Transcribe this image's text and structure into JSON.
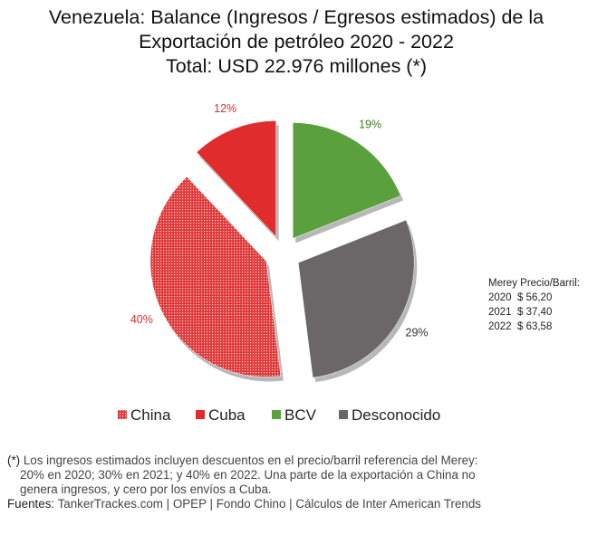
{
  "chart_data": {
    "type": "pie",
    "title": [
      "Venezuela: Balance (Ingresos / Egresos estimados) de la",
      "Exportación de petróleo 2020 - 2022",
      "Total: USD 22.976 millones (*)"
    ],
    "slices": [
      {
        "name": "BCV",
        "value": 19,
        "label": "19%",
        "color": "#5aa03c",
        "label_color": "#3f7d26",
        "pattern": "solid"
      },
      {
        "name": "Desconocido",
        "value": 29,
        "label": "29%",
        "color": "#6b6667",
        "label_color": "#333333",
        "pattern": "solid"
      },
      {
        "name": "China",
        "value": 40,
        "label": "40%",
        "color": "#e0393b",
        "label_color": "#d82f2f",
        "pattern": "dotted"
      },
      {
        "name": "Cuba",
        "value": 12,
        "label": "12%",
        "color": "#e02c2c",
        "label_color": "#d82f2f",
        "pattern": "solid"
      }
    ],
    "legend": [
      {
        "name": "China",
        "color": "#e0393b",
        "pattern": "dotted"
      },
      {
        "name": "Cuba",
        "color": "#e02c2c",
        "pattern": "solid"
      },
      {
        "name": "BCV",
        "color": "#5aa03c",
        "pattern": "solid"
      },
      {
        "name": "Desconocido",
        "color": "#6b6667",
        "pattern": "solid"
      }
    ],
    "legend_position": "bottom"
  },
  "price_box": {
    "heading": "Merey Precio/Barril:",
    "rows": [
      "2020  $ 56,20",
      "2021  $ 37,40",
      "2022  $ 63,58"
    ]
  },
  "footnote": {
    "marker": "(*)",
    "text_1": " Los ingresos estimados incluyen descuentos en el precio/barril referencia del Merey:",
    "text_2": "20% en 2020; 30% en 2021; y 40% en 2022. Una parte de la exportación a China no",
    "text_3": "genera ingresos, y cero por los envíos a Cuba."
  },
  "sources": {
    "label": "Fuentes:",
    "text": " TankerTrackes.com | OPEP | Fondo Chino | Cálculos de Inter American Trends"
  }
}
